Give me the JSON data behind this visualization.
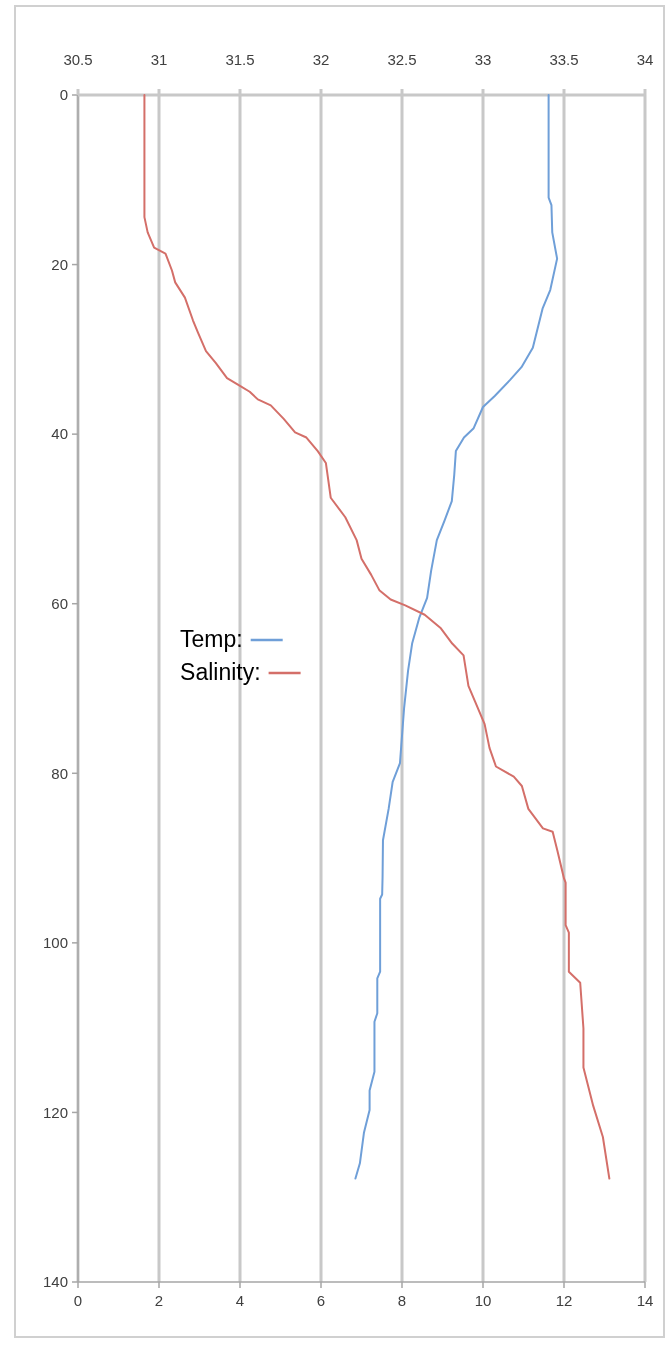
{
  "chart_data": {
    "type": "line",
    "ylim": [
      140,
      0
    ],
    "yticks": [
      0,
      20,
      40,
      60,
      80,
      100,
      120,
      140
    ],
    "xlim": [
      0,
      14
    ],
    "xticks": [
      0,
      2,
      4,
      6,
      8,
      10,
      12,
      14
    ],
    "x2lim": [
      30.5,
      34
    ],
    "x2ticks": [
      30.5,
      31,
      31.5,
      32,
      32.5,
      33,
      33.5,
      34
    ],
    "grid": "x",
    "legend": "left",
    "marker": "none",
    "line_style": "solid",
    "series": [
      {
        "name": "Temp:",
        "color": "#6f9fd8",
        "x": [
          11.62,
          11.62,
          11.69,
          11.71,
          11.83,
          11.66,
          11.47,
          11.23,
          10.95,
          10.67,
          10.29,
          10.0,
          9.77,
          9.53,
          9.33,
          9.29,
          9.23,
          9.05,
          8.86,
          8.72,
          8.62,
          8.43,
          8.25,
          8.15,
          8.05,
          7.95,
          7.77,
          7.67,
          7.53,
          7.52,
          7.51,
          7.46,
          7.46,
          7.39,
          7.39,
          7.32,
          7.32,
          7.2,
          7.2,
          7.06,
          6.96,
          6.85
        ],
        "values": [
          0,
          12.1,
          13,
          16.2,
          19.3,
          23,
          25.2,
          29.8,
          32.1,
          33.6,
          35.5,
          36.8,
          39.3,
          40.4,
          42,
          44.8,
          47.9,
          50.2,
          52.5,
          56.1,
          59.3,
          61.6,
          64.7,
          67.9,
          72.4,
          78.8,
          81,
          84.2,
          87.9,
          92.3,
          94.3,
          94.8,
          103.4,
          104.2,
          108.3,
          109.3,
          115.2,
          117.4,
          119.7,
          122.4,
          126,
          127.8
        ]
      },
      {
        "name": "Salinity:",
        "color": "#d46f69",
        "axis": "x2",
        "x": [
          30.91,
          30.91,
          30.93,
          30.97,
          31.04,
          31.08,
          31.1,
          31.16,
          31.21,
          31.24,
          31.29,
          31.35,
          31.42,
          31.5,
          31.56,
          31.61,
          31.69,
          31.77,
          31.84,
          31.91,
          31.98,
          32.03,
          32.06,
          32.15,
          32.22,
          32.25,
          32.31,
          32.36,
          32.43,
          32.52,
          32.64,
          32.74,
          32.81,
          32.88,
          32.91,
          32.95,
          33.01,
          33.04,
          33.08,
          33.19,
          33.24,
          33.28,
          33.37,
          33.43,
          33.46,
          33.5,
          33.51,
          33.51,
          33.53,
          33.53,
          33.6,
          33.62,
          33.62,
          33.68,
          33.74,
          33.78
        ],
        "values": [
          0,
          14.4,
          16.2,
          18,
          18.7,
          20.7,
          22.1,
          23.9,
          26.6,
          28,
          30.2,
          31.6,
          33.4,
          34.3,
          35,
          35.9,
          36.6,
          38.2,
          39.8,
          40.4,
          42,
          43.4,
          47.5,
          49.8,
          52.5,
          54.7,
          56.6,
          58.4,
          59.5,
          60.2,
          61.3,
          62.9,
          64.7,
          66.1,
          69.7,
          71.5,
          74.2,
          77,
          79.2,
          80.4,
          81.5,
          84.2,
          86.5,
          86.9,
          89.2,
          92.4,
          92.9,
          97.9,
          98.8,
          103.4,
          104.7,
          110.1,
          114.7,
          119.2,
          122.9,
          127.8
        ]
      }
    ]
  }
}
